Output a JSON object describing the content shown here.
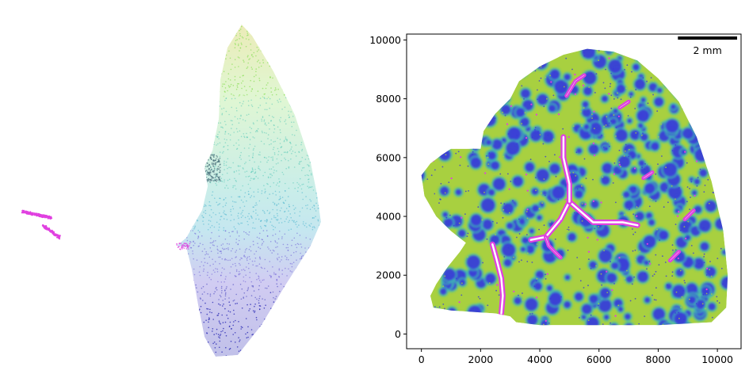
{
  "chart_data": [
    {
      "type": "scatter",
      "panel": "embedding",
      "axes_visible": false,
      "title": "",
      "xlabel": "",
      "ylabel": "",
      "clusters": [
        {
          "color": "#b8b800",
          "region": "top-tip"
        },
        {
          "color": "#90e060",
          "region": "upper-right"
        },
        {
          "color": "#40c0b0",
          "region": "middle-right"
        },
        {
          "color": "#30a8c8",
          "region": "right-bulge"
        },
        {
          "color": "#5a48d0",
          "region": "lower-left"
        },
        {
          "color": "#2020b0",
          "region": "bottom"
        },
        {
          "color": "#3a6070",
          "region": "left-notch"
        },
        {
          "color": "#e040e0",
          "region": "detached-islands"
        }
      ]
    },
    {
      "type": "scatter",
      "panel": "spatial",
      "title": "",
      "xlabel": "",
      "ylabel": "",
      "xlim": [
        -500,
        10800
      ],
      "ylim": [
        -500,
        10200
      ],
      "xticks": [
        0,
        2000,
        4000,
        6000,
        8000,
        10000
      ],
      "yticks": [
        0,
        2000,
        4000,
        6000,
        8000,
        10000
      ],
      "grid": false,
      "scalebar": {
        "label": "2 mm",
        "length_um": 2000,
        "position": "top-right"
      },
      "colors": {
        "background_tissue": "#3a3ad8",
        "intermediate": "#40c0b0",
        "interstitial": "#a8d040",
        "vessels": "#e040e0"
      },
      "outline": [
        [
          0,
          5400
        ],
        [
          300,
          5800
        ],
        [
          700,
          6100
        ],
        [
          1000,
          6300
        ],
        [
          2000,
          6300
        ],
        [
          2100,
          6900
        ],
        [
          2500,
          7500
        ],
        [
          3000,
          8000
        ],
        [
          3300,
          8600
        ],
        [
          4000,
          9100
        ],
        [
          4800,
          9500
        ],
        [
          5600,
          9700
        ],
        [
          6500,
          9600
        ],
        [
          7300,
          9300
        ],
        [
          8000,
          8700
        ],
        [
          8700,
          7900
        ],
        [
          9300,
          6700
        ],
        [
          9800,
          5200
        ],
        [
          10200,
          3500
        ],
        [
          10350,
          2000
        ],
        [
          10300,
          900
        ],
        [
          9800,
          400
        ],
        [
          8000,
          300
        ],
        [
          6000,
          300
        ],
        [
          4000,
          300
        ],
        [
          3200,
          400
        ],
        [
          3000,
          600
        ],
        [
          2500,
          700
        ],
        [
          1000,
          800
        ],
        [
          400,
          900
        ],
        [
          300,
          1300
        ],
        [
          500,
          1700
        ],
        [
          900,
          2300
        ],
        [
          1300,
          2800
        ],
        [
          1500,
          3100
        ],
        [
          1000,
          3500
        ],
        [
          500,
          4000
        ],
        [
          100,
          4700
        ]
      ],
      "vessels": [
        {
          "points": [
            [
              2400,
              3050
            ],
            [
              2550,
              2500
            ],
            [
              2700,
              1900
            ],
            [
              2750,
              1300
            ],
            [
              2700,
              700
            ]
          ]
        },
        {
          "points": [
            [
              5000,
              4500
            ],
            [
              4700,
              3900
            ],
            [
              4200,
              3300
            ],
            [
              3700,
              3200
            ]
          ]
        },
        {
          "points": [
            [
              5000,
              4500
            ],
            [
              5800,
              3800
            ],
            [
              6800,
              3800
            ],
            [
              7300,
              3700
            ]
          ]
        },
        {
          "points": [
            [
              5000,
              4500
            ],
            [
              5000,
              5100
            ],
            [
              4800,
              6000
            ],
            [
              4800,
              6700
            ]
          ]
        },
        {
          "points": [
            [
              4200,
              3300
            ],
            [
              4300,
              3000
            ],
            [
              4700,
              2600
            ]
          ]
        },
        {
          "points": [
            [
              4900,
              8100
            ],
            [
              5200,
              8600
            ],
            [
              5500,
              8800
            ]
          ]
        },
        {
          "points": [
            [
              7000,
              7900
            ],
            [
              6700,
              7700
            ]
          ]
        },
        {
          "points": [
            [
              7800,
              5500
            ],
            [
              7500,
              5300
            ]
          ]
        },
        {
          "points": [
            [
              8700,
              2800
            ],
            [
              8400,
              2500
            ]
          ]
        },
        {
          "points": [
            [
              9200,
              4200
            ],
            [
              8900,
              3900
            ]
          ]
        }
      ]
    }
  ]
}
